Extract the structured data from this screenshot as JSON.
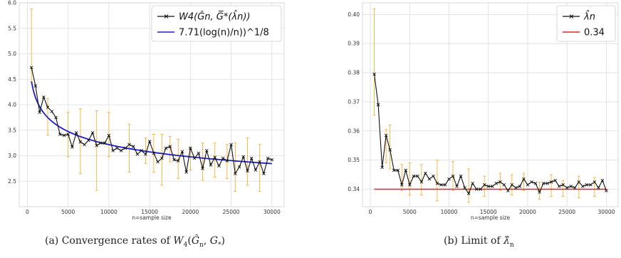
{
  "chart_data": [
    {
      "type": "line",
      "xlabel": "n=sample size",
      "xlim": [
        -1000,
        31500
      ],
      "ylim": [
        2.0,
        6.0
      ],
      "xticks": [
        0,
        5000,
        10000,
        15000,
        20000,
        25000,
        30000
      ],
      "yticks": [
        2.5,
        3.0,
        3.5,
        4.0,
        4.5,
        5.0,
        5.5,
        6.0
      ],
      "grid": true,
      "legend_position": "top-right",
      "caption_prefix": "(a) Convergence rates of",
      "error_color": "#f5a623",
      "series": [
        {
          "name": "W4(Ĝn, G̅*(λ̂n))",
          "color": "#111111",
          "marker": "x",
          "x": [
            500,
            1000,
            1500,
            2000,
            2500,
            3000,
            3500,
            4000,
            4500,
            5000,
            5500,
            6000,
            6500,
            7000,
            7500,
            8000,
            8500,
            9000,
            9500,
            10000,
            10500,
            11000,
            11500,
            12000,
            12500,
            13000,
            13500,
            14000,
            14500,
            15000,
            15500,
            16000,
            16500,
            17000,
            17500,
            18000,
            18500,
            19000,
            19500,
            20000,
            20500,
            21000,
            21500,
            22000,
            22500,
            23000,
            23500,
            24000,
            24500,
            25000,
            25500,
            26000,
            26500,
            27000,
            27500,
            28000,
            28500,
            29000,
            29500,
            30000
          ],
          "y": [
            4.73,
            4.37,
            3.85,
            4.15,
            3.95,
            3.87,
            3.75,
            3.42,
            3.4,
            3.42,
            3.17,
            3.45,
            3.27,
            3.22,
            3.3,
            3.45,
            3.2,
            3.25,
            3.25,
            3.4,
            3.1,
            3.15,
            3.1,
            3.15,
            3.22,
            3.18,
            3.03,
            3.1,
            3.03,
            3.28,
            3.05,
            2.88,
            2.95,
            3.15,
            3.18,
            2.92,
            2.9,
            3.08,
            2.68,
            3.15,
            2.95,
            3.05,
            2.75,
            3.1,
            2.82,
            2.97,
            2.8,
            2.95,
            2.9,
            3.22,
            2.65,
            2.78,
            2.98,
            2.7,
            2.95,
            2.72,
            2.88,
            2.65,
            2.95,
            2.92
          ]
        },
        {
          "name": "7.71(log(n)/n))^1/8",
          "color": "#1f1fc8",
          "formula": "7.71*(log(n)/n)^(1/8)"
        }
      ],
      "errorbars": [
        {
          "x": 500,
          "low": 4.45,
          "high": 5.88
        },
        {
          "x": 2500,
          "low": 3.4,
          "high": 4.12
        },
        {
          "x": 5000,
          "low": 2.98,
          "high": 3.85
        },
        {
          "x": 6500,
          "low": 2.65,
          "high": 3.92
        },
        {
          "x": 8500,
          "low": 2.32,
          "high": 3.88
        },
        {
          "x": 10000,
          "low": 2.98,
          "high": 3.85
        },
        {
          "x": 12500,
          "low": 2.68,
          "high": 3.62
        },
        {
          "x": 14500,
          "low": 2.85,
          "high": 3.35
        },
        {
          "x": 15500,
          "low": 2.68,
          "high": 3.42
        },
        {
          "x": 16500,
          "low": 2.42,
          "high": 3.42
        },
        {
          "x": 17500,
          "low": 2.88,
          "high": 3.38
        },
        {
          "x": 18500,
          "low": 2.55,
          "high": 3.32
        },
        {
          "x": 20000,
          "low": 2.72,
          "high": 3.15
        },
        {
          "x": 21500,
          "low": 2.52,
          "high": 3.25
        },
        {
          "x": 23000,
          "low": 2.58,
          "high": 3.25
        },
        {
          "x": 24500,
          "low": 2.55,
          "high": 3.22
        },
        {
          "x": 25500,
          "low": 2.3,
          "high": 3.25
        },
        {
          "x": 27000,
          "low": 2.42,
          "high": 3.35
        },
        {
          "x": 28500,
          "low": 2.3,
          "high": 3.22
        }
      ]
    },
    {
      "type": "line",
      "xlabel": "n=sample size",
      "xlim": [
        -1000,
        31500
      ],
      "ylim": [
        0.334,
        0.404
      ],
      "xticks": [
        0,
        5000,
        10000,
        15000,
        20000,
        25000,
        30000
      ],
      "yticks": [
        0.34,
        0.35,
        0.36,
        0.37,
        0.38,
        0.39,
        0.4
      ],
      "grid": true,
      "legend_position": "top-right",
      "caption_prefix": "(b) Limit of",
      "error_color": "#f5a623",
      "series": [
        {
          "name": "λ̂n",
          "color": "#111111",
          "marker": "x",
          "x": [
            500,
            1000,
            1500,
            2000,
            2500,
            3000,
            3500,
            4000,
            4500,
            5000,
            5500,
            6000,
            6500,
            7000,
            7500,
            8000,
            8500,
            9000,
            9500,
            10000,
            10500,
            11000,
            11500,
            12000,
            12500,
            13000,
            13500,
            14000,
            14500,
            15000,
            15500,
            16000,
            16500,
            17000,
            17500,
            18000,
            18500,
            19000,
            19500,
            20000,
            20500,
            21000,
            21500,
            22000,
            22500,
            23000,
            23500,
            24000,
            24500,
            25000,
            25500,
            26000,
            26500,
            27000,
            27500,
            28000,
            28500,
            29000,
            29500,
            30000
          ],
          "y": [
            0.3795,
            0.369,
            0.3475,
            0.3585,
            0.3535,
            0.3465,
            0.3465,
            0.3415,
            0.3465,
            0.3415,
            0.3445,
            0.3445,
            0.3425,
            0.3455,
            0.3435,
            0.3445,
            0.342,
            0.3415,
            0.3415,
            0.3435,
            0.3445,
            0.341,
            0.3445,
            0.3405,
            0.3385,
            0.342,
            0.34,
            0.34,
            0.3415,
            0.341,
            0.341,
            0.342,
            0.3425,
            0.3415,
            0.3395,
            0.3415,
            0.3405,
            0.341,
            0.3435,
            0.3415,
            0.3425,
            0.342,
            0.339,
            0.342,
            0.342,
            0.3425,
            0.343,
            0.341,
            0.3415,
            0.3405,
            0.341,
            0.3405,
            0.3425,
            0.341,
            0.3415,
            0.3415,
            0.3425,
            0.3405,
            0.343,
            0.3395
          ]
        },
        {
          "name": "0.34",
          "color": "#e8202a",
          "constant": 0.34
        }
      ],
      "errorbars": [
        {
          "x": 500,
          "low": 0.3655,
          "high": 0.402
        },
        {
          "x": 2000,
          "low": 0.349,
          "high": 0.3605
        },
        {
          "x": 2500,
          "low": 0.347,
          "high": 0.362
        },
        {
          "x": 4000,
          "low": 0.3395,
          "high": 0.3485
        },
        {
          "x": 5000,
          "low": 0.338,
          "high": 0.349
        },
        {
          "x": 6500,
          "low": 0.338,
          "high": 0.3485
        },
        {
          "x": 8500,
          "low": 0.336,
          "high": 0.35
        },
        {
          "x": 10500,
          "low": 0.3395,
          "high": 0.3495
        },
        {
          "x": 12500,
          "low": 0.3355,
          "high": 0.347
        },
        {
          "x": 14500,
          "low": 0.3375,
          "high": 0.3445
        },
        {
          "x": 16500,
          "low": 0.3395,
          "high": 0.3455
        },
        {
          "x": 18000,
          "low": 0.338,
          "high": 0.345
        },
        {
          "x": 19500,
          "low": 0.3395,
          "high": 0.3455
        },
        {
          "x": 21500,
          "low": 0.3365,
          "high": 0.3425
        },
        {
          "x": 23000,
          "low": 0.3375,
          "high": 0.345
        },
        {
          "x": 24500,
          "low": 0.3375,
          "high": 0.343
        },
        {
          "x": 26500,
          "low": 0.337,
          "high": 0.3445
        },
        {
          "x": 28500,
          "low": 0.3375,
          "high": 0.344
        }
      ]
    }
  ]
}
